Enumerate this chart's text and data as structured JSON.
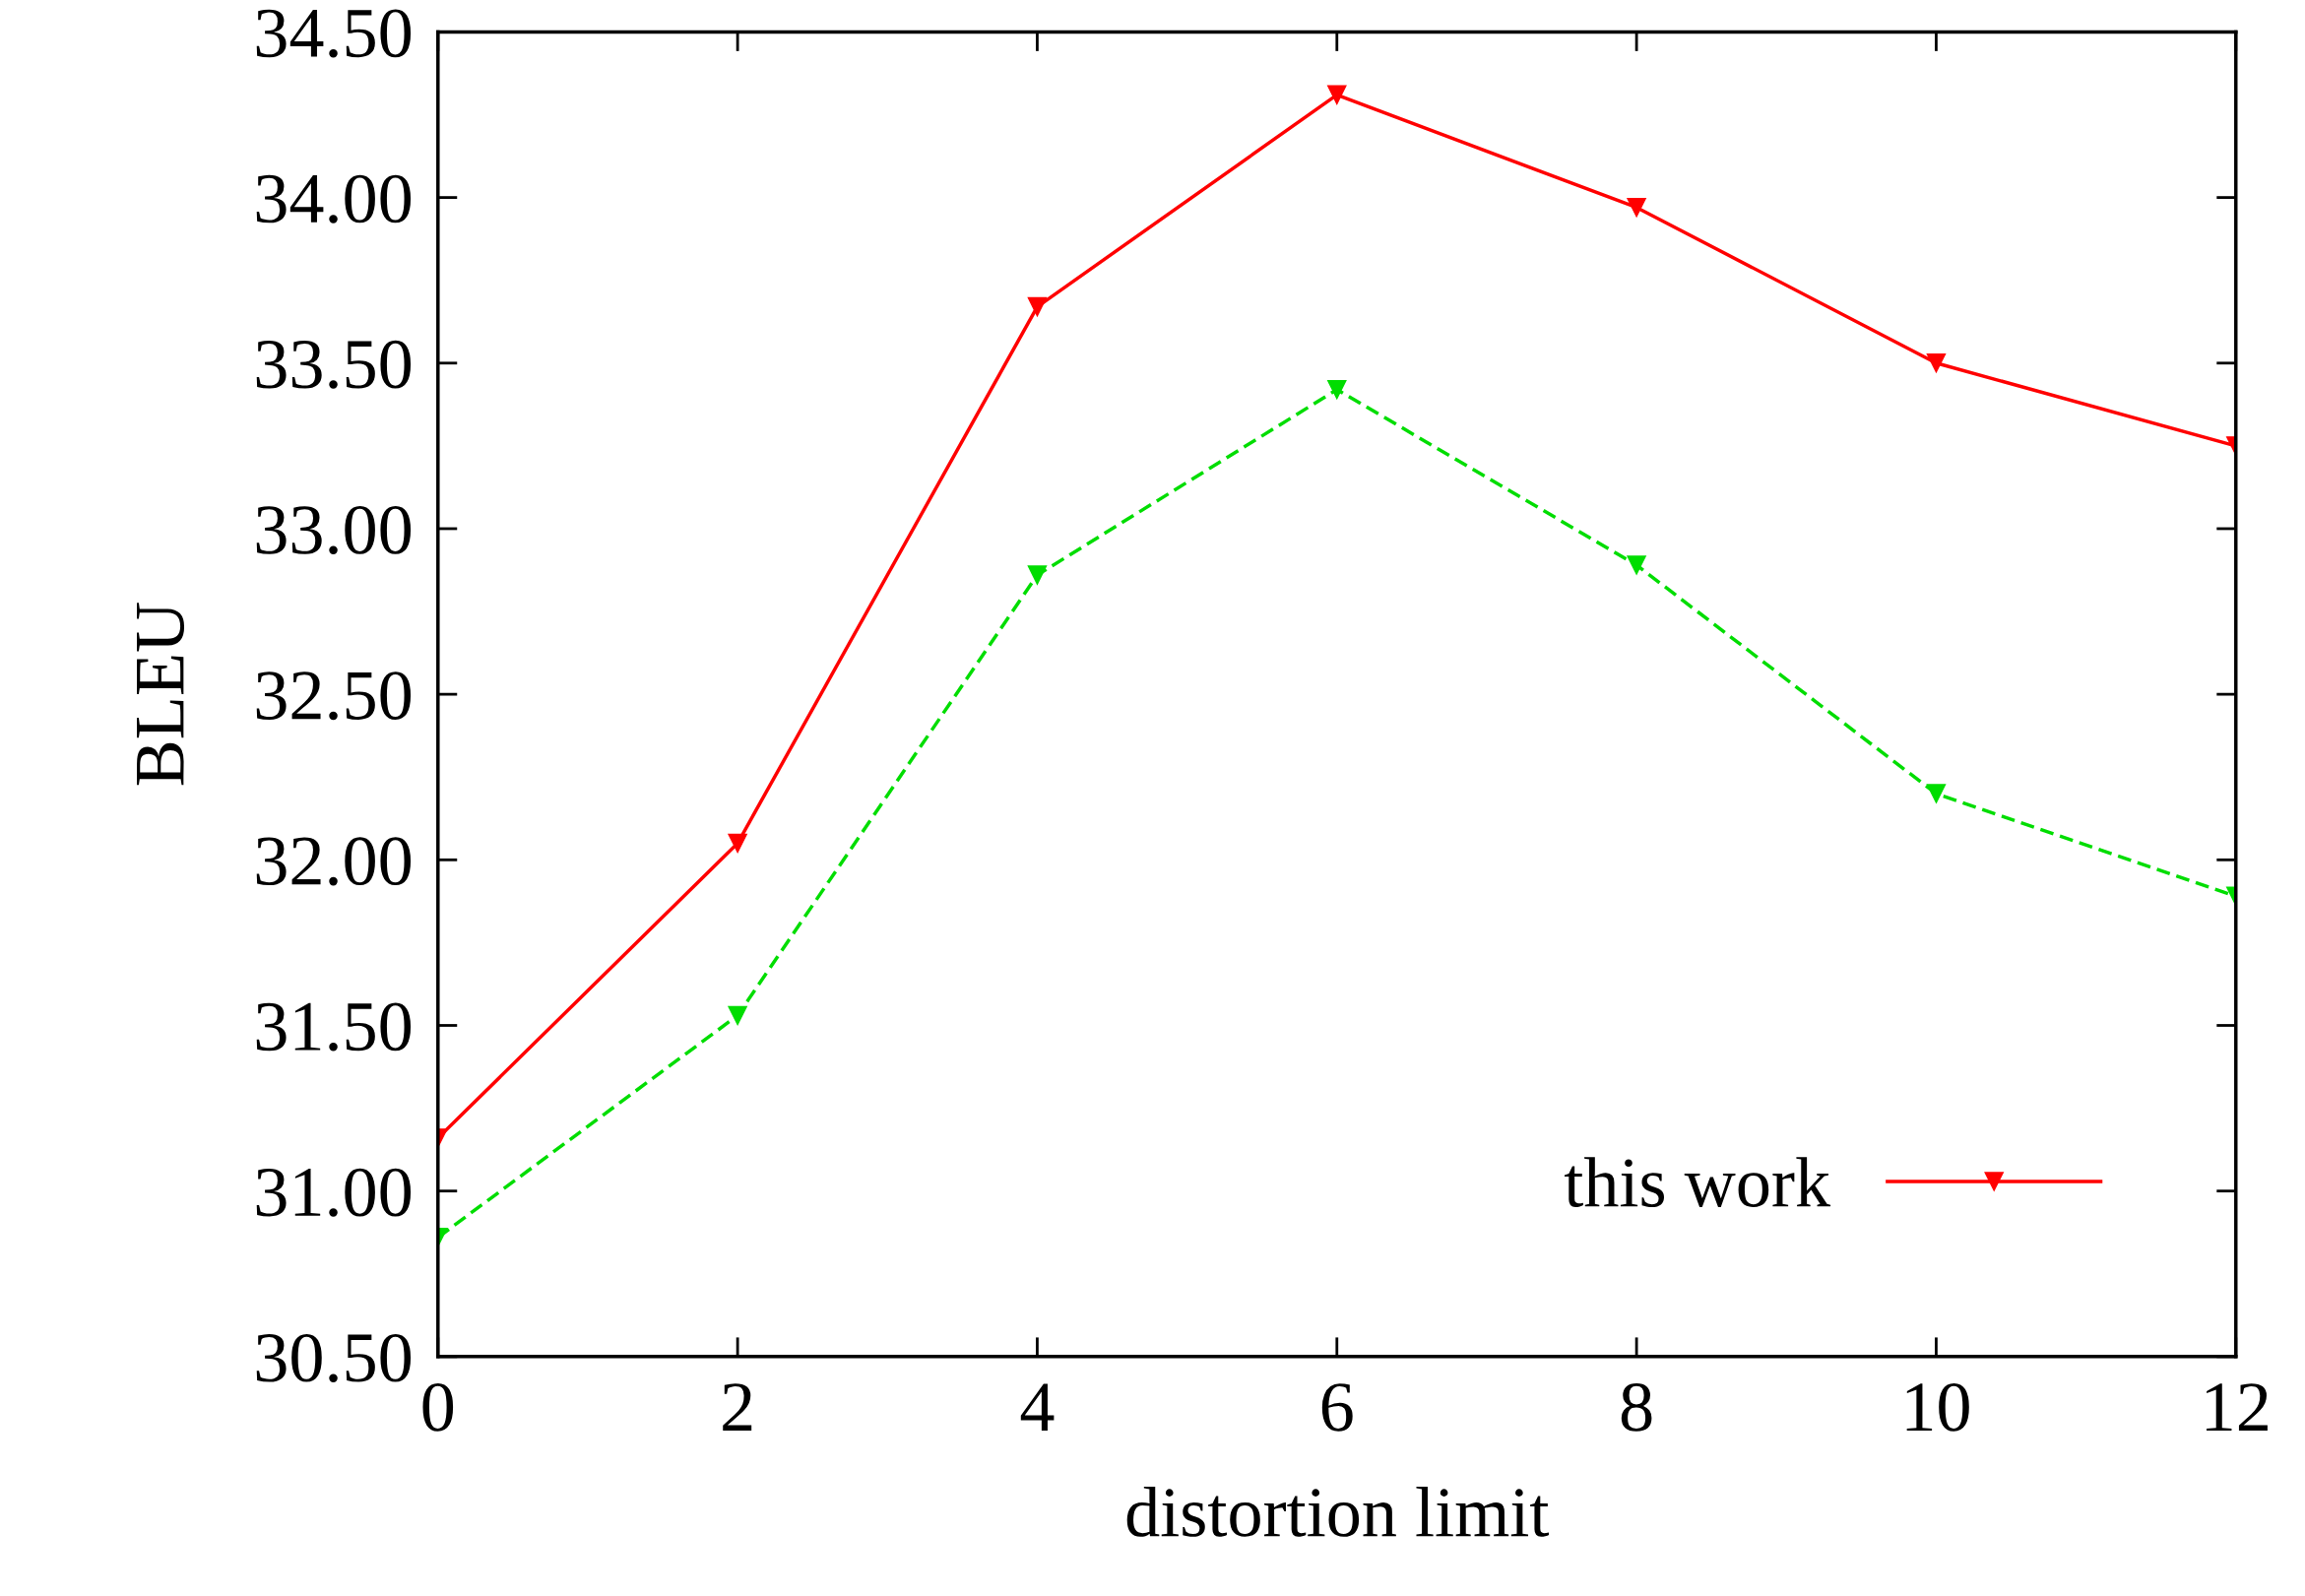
{
  "chart_data": {
    "type": "line",
    "xlabel": "distortion limit",
    "ylabel": "BLEU",
    "x": [
      0,
      2,
      4,
      6,
      8,
      10,
      12
    ],
    "series": [
      {
        "name": "this work",
        "color": "#ff0000",
        "line_style": "solid",
        "values": [
          31.16,
          32.05,
          33.67,
          34.31,
          33.97,
          33.5,
          33.25
        ]
      },
      {
        "color": "#00dd00",
        "line_style": "dashed",
        "values": [
          30.86,
          31.53,
          32.86,
          33.42,
          32.89,
          32.2,
          31.89
        ]
      }
    ],
    "xlim": [
      0,
      12
    ],
    "xticks": [
      0,
      2,
      4,
      6,
      8,
      10,
      12
    ],
    "ylim": [
      30.5,
      34.5
    ],
    "yticks": [
      {
        "value": 30.5,
        "label": "30.50"
      },
      {
        "value": 31,
        "label": "31.00"
      },
      {
        "value": 31.5,
        "label": "31.50"
      },
      {
        "value": 32,
        "label": "32.00"
      },
      {
        "value": 32.5,
        "label": "32.50"
      },
      {
        "value": 33,
        "label": "33.00"
      },
      {
        "value": 33.5,
        "label": "33.50"
      },
      {
        "value": 34,
        "label": "34.00"
      },
      {
        "value": 34.5,
        "label": "34.50"
      }
    ],
    "marker": "triangle",
    "grid": false,
    "legend": "bottom right"
  }
}
